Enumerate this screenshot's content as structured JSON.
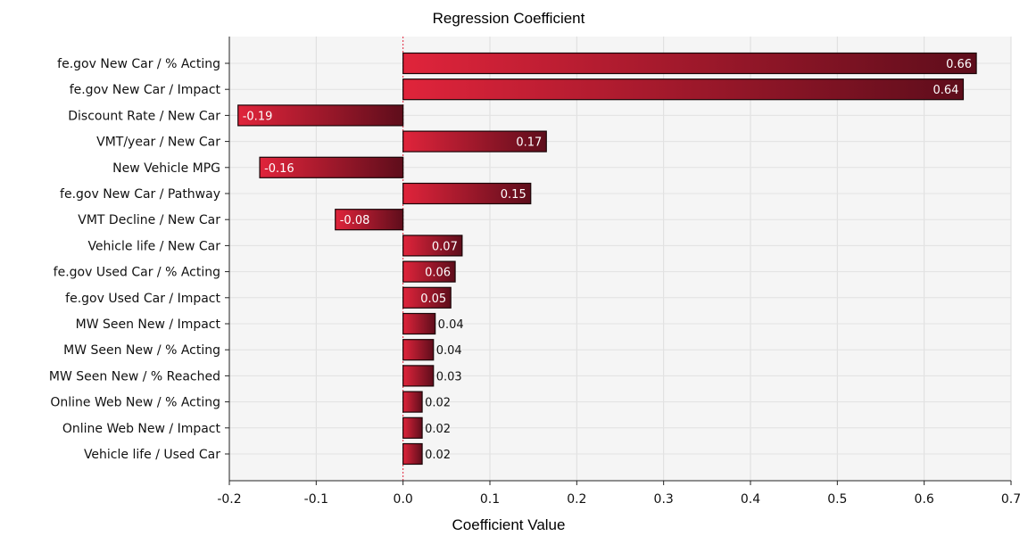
{
  "chart_data": {
    "type": "bar",
    "orientation": "horizontal",
    "title": "Regression Coefficient",
    "xlabel": "Coefficient Value",
    "ylabel": "",
    "xlim": [
      -0.2,
      0.7
    ],
    "xticks": [
      -0.2,
      -0.1,
      0.0,
      0.1,
      0.2,
      0.3,
      0.4,
      0.5,
      0.6,
      0.7
    ],
    "xtick_labels": [
      "-0.2",
      "-0.1",
      "0.0",
      "0.1",
      "0.2",
      "0.3",
      "0.4",
      "0.5",
      "0.6",
      "0.7"
    ],
    "grid": true,
    "zero_reference_line": true,
    "bar_colors": {
      "light": "#e0243b",
      "dark": "#5e0d1b",
      "outline": "#1a0508"
    },
    "categories": [
      "fe.gov New Car / % Acting",
      "fe.gov New Car / Impact",
      "Discount Rate / New Car",
      "VMT/year / New Car",
      "New Vehicle MPG",
      "fe.gov New Car / Pathway",
      "VMT Decline / New Car",
      "Vehicle life / New Car",
      "fe.gov Used Car / % Acting",
      "fe.gov Used Car / Impact",
      "MW Seen New / Impact",
      "MW Seen New / % Acting",
      "MW Seen New / % Reached",
      "Online Web New / % Acting",
      "Online Web New / Impact",
      "Vehicle life / Used Car"
    ],
    "values": [
      0.66,
      0.645,
      -0.19,
      0.165,
      -0.165,
      0.147,
      -0.078,
      0.068,
      0.06,
      0.055,
      0.037,
      0.035,
      0.035,
      0.022,
      0.022,
      0.022
    ],
    "value_labels": [
      "0.66",
      "0.64",
      "-0.19",
      "0.17",
      "-0.16",
      "0.15",
      "-0.08",
      "0.07",
      "0.06",
      "0.05",
      "0.04",
      "0.04",
      "0.03",
      "0.02",
      "0.02",
      "0.02"
    ]
  }
}
